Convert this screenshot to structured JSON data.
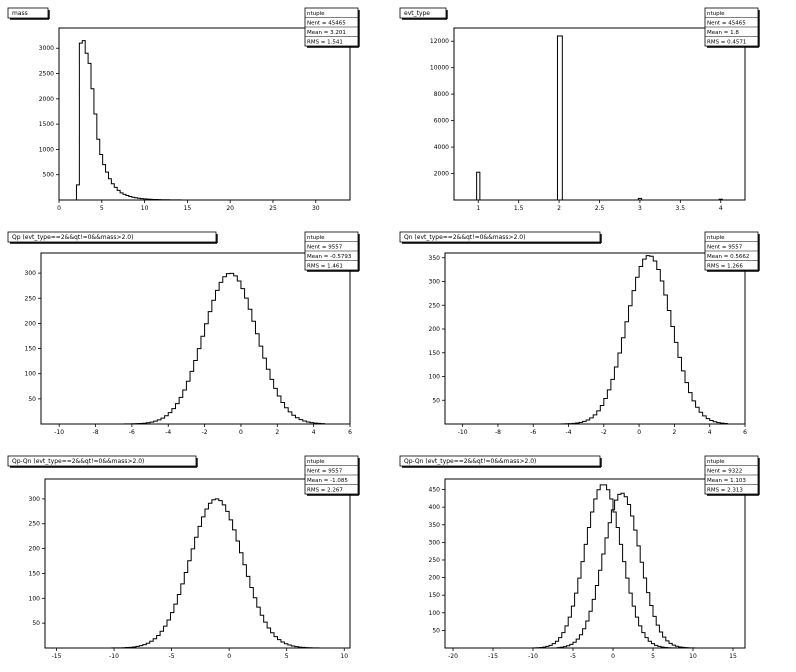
{
  "chart_data": [
    {
      "type": "histogram",
      "title": "mass",
      "stats": {
        "header": "ntuple",
        "entries": "Nent = 45465",
        "mean": "Mean = 3.201",
        "rms": "RMS = 1.541"
      },
      "xlim": [
        0,
        34
      ],
      "ylim": [
        0,
        3400
      ],
      "xticks": [
        0,
        5,
        10,
        15,
        20,
        25,
        30
      ],
      "xticklabels": [
        "0",
        "5",
        "10",
        "15",
        "20",
        "25",
        "30"
      ],
      "yticks": [
        500,
        1000,
        1500,
        2000,
        2500,
        3000
      ],
      "yticklabels": [
        "500",
        "1000",
        "1500",
        "2000",
        "2500",
        "3000"
      ],
      "series": [
        {
          "bin_start": 0,
          "bin_width": 0.34,
          "values": [
            0,
            0,
            0,
            0,
            0,
            0,
            300,
            3100,
            3150,
            2900,
            2700,
            2200,
            1700,
            1200,
            900,
            700,
            550,
            420,
            320,
            250,
            190,
            140,
            110,
            90,
            70,
            55,
            45,
            35,
            28,
            22,
            18,
            14,
            11,
            9,
            7,
            6,
            5,
            4,
            3,
            3,
            2,
            2,
            1,
            1,
            1,
            1,
            0,
            0,
            0,
            0,
            0,
            0
          ]
        }
      ]
    },
    {
      "type": "histogram",
      "title": "evt_type",
      "stats": {
        "header": "ntuple",
        "entries": "Nent = 45465",
        "mean": "Mean = 1.8",
        "rms": "RMS = 0.4571"
      },
      "xlim": [
        0.7,
        4.3
      ],
      "ylim": [
        0,
        13000
      ],
      "xticks": [
        1,
        1.5,
        2,
        2.5,
        3,
        3.5,
        4
      ],
      "xticklabels": [
        "1",
        "1.5",
        "2",
        "2.5",
        "3",
        "3.5",
        "4"
      ],
      "yticks": [
        2000,
        4000,
        6000,
        8000,
        10000,
        12000
      ],
      "yticklabels": [
        "2000",
        "4000",
        "6000",
        "8000",
        "10000",
        "12000"
      ],
      "bars": [
        {
          "x0": 0.98,
          "x1": 1.02,
          "value": 2100
        },
        {
          "x0": 1.98,
          "x1": 2.04,
          "value": 12400
        },
        {
          "x0": 2.98,
          "x1": 3.02,
          "value": 120
        },
        {
          "x0": 3.98,
          "x1": 4.02,
          "value": 60
        }
      ]
    },
    {
      "type": "histogram",
      "title": "Qp (evt_type==2&&qt!=0&&mass>2.0)",
      "stats": {
        "header": "ntuple",
        "entries": "Nent = 9557",
        "mean": "Mean = -0.5793",
        "rms": "RMS = 1.461"
      },
      "xlim": [
        -11,
        6
      ],
      "ylim": [
        0,
        340
      ],
      "xticks": [
        -10,
        -8,
        -6,
        -4,
        -2,
        0,
        2,
        4,
        6
      ],
      "xticklabels": [
        "-10",
        "-8",
        "-6",
        "-4",
        "-2",
        "0",
        "2",
        "4",
        "6"
      ],
      "yticks": [
        50,
        100,
        150,
        200,
        250,
        300
      ],
      "yticklabels": [
        "50",
        "100",
        "150",
        "200",
        "250",
        "300"
      ],
      "series": [
        {
          "gauss": true,
          "mean": -0.58,
          "sigma": 1.46,
          "peak": 300,
          "range": [
            -7,
            4.5
          ],
          "bin_width": 0.2
        }
      ]
    },
    {
      "type": "histogram",
      "title": "Qn (evt_type==2&&qt!=0&&mass>2.0)",
      "stats": {
        "header": "ntuple",
        "entries": "Nent = 9557",
        "mean": "Mean = 0.5662",
        "rms": "RMS = 1.266"
      },
      "xlim": [
        -11,
        6
      ],
      "ylim": [
        0,
        360
      ],
      "xticks": [
        -10,
        -8,
        -6,
        -4,
        -2,
        0,
        2,
        4,
        6
      ],
      "xticklabels": [
        "-10",
        "-8",
        "-6",
        "-4",
        "-2",
        "0",
        "2",
        "4",
        "6"
      ],
      "yticks": [
        50,
        100,
        150,
        200,
        250,
        300,
        350
      ],
      "yticklabels": [
        "50",
        "100",
        "150",
        "200",
        "250",
        "300",
        "350"
      ],
      "series": [
        {
          "gauss": true,
          "mean": 0.57,
          "sigma": 1.27,
          "peak": 355,
          "range": [
            -5,
            5
          ],
          "bin_width": 0.2
        }
      ]
    },
    {
      "type": "histogram",
      "title": "Qp-Qn (evt_type==2&&qt!=0&&mass>2.0)",
      "stats": {
        "header": "ntuple",
        "entries": "Nent = 9557",
        "mean": "Mean = -1.085",
        "rms": "RMS = 2.267"
      },
      "xlim": [
        -16,
        10.5
      ],
      "ylim": [
        0,
        340
      ],
      "xticks": [
        -15,
        -10,
        -5,
        0,
        5,
        10
      ],
      "xticklabels": [
        "-15",
        "-10",
        "-5",
        "0",
        "5",
        "10"
      ],
      "yticks": [
        50,
        100,
        150,
        200,
        250,
        300
      ],
      "yticklabels": [
        "50",
        "100",
        "150",
        "200",
        "250",
        "300"
      ],
      "series": [
        {
          "gauss": true,
          "mean": -1.1,
          "sigma": 2.27,
          "peak": 300,
          "range": [
            -12,
            8
          ],
          "bin_width": 0.3
        }
      ]
    },
    {
      "type": "histogram",
      "title": "Qp-Qn (evt_type==2&&qt!=0&&mass>2.0)",
      "stats": {
        "header": "ntuple",
        "entries": "Nent = 9322",
        "mean": "Mean = 1.103",
        "rms": "RMS = 2.313"
      },
      "xlim": [
        -21,
        16.5
      ],
      "ylim": [
        0,
        480
      ],
      "xticks": [
        -20,
        -15,
        -10,
        -5,
        0,
        5,
        10,
        15
      ],
      "xticklabels": [
        "-20",
        "-15",
        "-10",
        "-5",
        "0",
        "5",
        "10",
        "15"
      ],
      "yticks": [
        50,
        100,
        150,
        200,
        250,
        300,
        350,
        400,
        450
      ],
      "yticklabels": [
        "50",
        "100",
        "150",
        "200",
        "250",
        "300",
        "350",
        "400",
        "450"
      ],
      "series": [
        {
          "gauss": true,
          "mean": -1.2,
          "sigma": 2.3,
          "peak": 465,
          "range": [
            -10,
            8
          ],
          "bin_width": 0.4
        },
        {
          "gauss": true,
          "mean": 1.1,
          "sigma": 2.3,
          "peak": 440,
          "range": [
            -7,
            11
          ],
          "bin_width": 0.4
        }
      ]
    }
  ]
}
